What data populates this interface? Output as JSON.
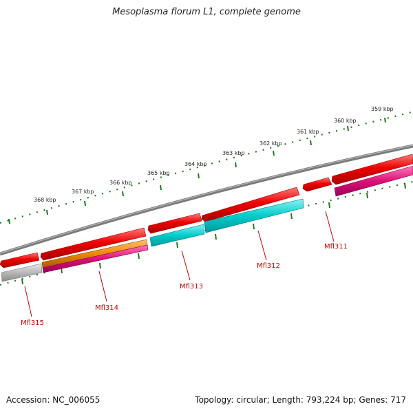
{
  "title": "Mesoplasma florum L1, complete genome",
  "footer": {
    "accession": "Accession: NC_006055",
    "summary": "Topology: circular; Length: 793,224 bp; Genes: 717"
  },
  "colors": {
    "backbone": "#7a7a7a",
    "ticks": "#1f7a1f",
    "gene_red": "#ee0000",
    "gene_cyan": "#00cccc",
    "gene_orange": "#ee8800",
    "gene_magenta": "#dd1177",
    "gene_grey": "#b0b0b0",
    "label_red": "#cc0000"
  },
  "scale_labels": [
    "359 kbp",
    "360 kbp",
    "361 kbp",
    "362 kbp",
    "363 kbp",
    "364 kbp",
    "365 kbp",
    "366 kbp",
    "367 kbp",
    "368 kbp"
  ],
  "gene_labels": [
    "Mfl311",
    "Mfl312",
    "Mfl313",
    "Mfl314",
    "Mfl315"
  ]
}
